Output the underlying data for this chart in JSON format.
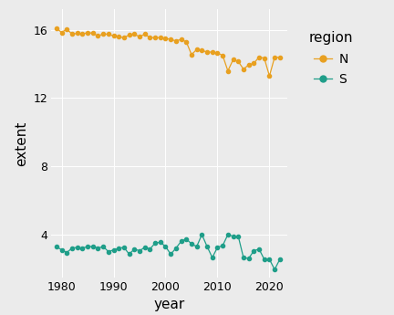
{
  "years_N": [
    1979,
    1980,
    1981,
    1982,
    1983,
    1984,
    1985,
    1986,
    1987,
    1988,
    1989,
    1990,
    1991,
    1992,
    1993,
    1994,
    1995,
    1996,
    1997,
    1998,
    1999,
    2000,
    2001,
    2002,
    2003,
    2004,
    2005,
    2006,
    2007,
    2008,
    2009,
    2010,
    2011,
    2012,
    2013,
    2014,
    2015,
    2016,
    2017,
    2018,
    2019,
    2020,
    2021,
    2022
  ],
  "values_N": [
    16.1,
    15.85,
    16.05,
    15.75,
    15.8,
    15.75,
    15.85,
    15.8,
    15.65,
    15.75,
    15.75,
    15.65,
    15.6,
    15.55,
    15.7,
    15.75,
    15.6,
    15.75,
    15.55,
    15.55,
    15.55,
    15.5,
    15.45,
    15.35,
    15.45,
    15.3,
    14.55,
    14.85,
    14.8,
    14.7,
    14.7,
    14.65,
    14.5,
    13.6,
    14.25,
    14.15,
    13.7,
    13.95,
    14.05,
    14.4,
    14.35,
    13.3,
    14.4,
    14.4
  ],
  "years_S": [
    1979,
    1980,
    1981,
    1982,
    1983,
    1984,
    1985,
    1986,
    1987,
    1988,
    1989,
    1990,
    1991,
    1992,
    1993,
    1994,
    1995,
    1996,
    1997,
    1998,
    1999,
    2000,
    2001,
    2002,
    2003,
    2004,
    2005,
    2006,
    2007,
    2008,
    2009,
    2010,
    2011,
    2012,
    2013,
    2014,
    2015,
    2016,
    2017,
    2018,
    2019,
    2020,
    2021,
    2022
  ],
  "values_S": [
    3.3,
    3.1,
    2.95,
    3.2,
    3.25,
    3.2,
    3.3,
    3.3,
    3.2,
    3.3,
    3.0,
    3.1,
    3.2,
    3.25,
    2.85,
    3.15,
    3.05,
    3.25,
    3.15,
    3.5,
    3.55,
    3.3,
    2.85,
    3.2,
    3.6,
    3.75,
    3.45,
    3.3,
    4.0,
    3.3,
    2.65,
    3.25,
    3.35,
    4.0,
    3.9,
    3.9,
    2.65,
    2.6,
    3.05,
    3.15,
    2.55,
    2.55,
    1.95,
    2.55
  ],
  "color_N": "#E8A020",
  "color_S": "#1F9E89",
  "xlabel": "year",
  "ylabel": "extent",
  "legend_title": "region",
  "legend_labels": [
    "N",
    "S"
  ],
  "yticks": [
    4,
    8,
    12,
    16
  ],
  "xticks": [
    1980,
    1990,
    2000,
    2010,
    2020
  ],
  "ylim": [
    1.5,
    17.2
  ],
  "xlim": [
    1978.0,
    2023.5
  ],
  "bg_color": "#EBEBEB",
  "legend_bg": "#EBEBEB",
  "grid_color": "#FFFFFF",
  "marker_size": 3.0,
  "line_width": 0.9
}
